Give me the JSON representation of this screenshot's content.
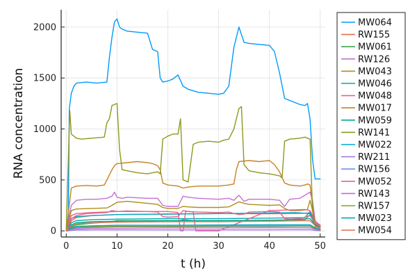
{
  "chart_data": {
    "type": "line",
    "xlabel": "t (h)",
    "ylabel": "RNA concentration",
    "xlim": [
      -1,
      51
    ],
    "ylim": [
      -60,
      2170
    ],
    "xticks": [
      0,
      10,
      20,
      30,
      40,
      50
    ],
    "yticks": [
      0,
      500,
      1000,
      1500,
      2000
    ],
    "grid": true,
    "legend_position": "top-right-outside",
    "series": [
      {
        "name": "MW064",
        "color": "#009AFA",
        "x": [
          0,
          0.4,
          0.6,
          1,
          1.5,
          2,
          4,
          6,
          8,
          8.5,
          9,
          9.5,
          10,
          10.5,
          11,
          12,
          14,
          16,
          17,
          18,
          18.5,
          19,
          20,
          21,
          22,
          23,
          24,
          26,
          28,
          30,
          31,
          32,
          33,
          34,
          35,
          36,
          38,
          40,
          41,
          42,
          43,
          44,
          46,
          47,
          47.5,
          48,
          48.5,
          49,
          50
        ],
        "y": [
          0,
          0,
          1200,
          1350,
          1420,
          1450,
          1460,
          1450,
          1460,
          1700,
          1900,
          2050,
          2080,
          2000,
          1980,
          1960,
          1950,
          1940,
          1780,
          1760,
          1500,
          1460,
          1470,
          1490,
          1530,
          1420,
          1390,
          1360,
          1350,
          1340,
          1350,
          1420,
          1800,
          2000,
          1850,
          1840,
          1830,
          1820,
          1760,
          1550,
          1300,
          1280,
          1240,
          1230,
          1250,
          1100,
          700,
          510,
          510
        ]
      },
      {
        "name": "RW155",
        "color": "#E36F47",
        "x": [
          0,
          1,
          2,
          5,
          10,
          20,
          30,
          40,
          45,
          48,
          49,
          50
        ],
        "y": [
          0,
          100,
          130,
          150,
          160,
          165,
          170,
          168,
          170,
          175,
          80,
          60
        ]
      },
      {
        "name": "MW061",
        "color": "#3EA44E",
        "x": [
          0,
          1,
          2,
          5,
          8,
          10,
          20,
          22,
          23,
          25,
          30,
          40,
          47,
          48,
          49,
          50
        ],
        "y": [
          0,
          40,
          60,
          75,
          85,
          100,
          100,
          95,
          110,
          100,
          100,
          105,
          110,
          160,
          60,
          40
        ]
      },
      {
        "name": "RW126",
        "color": "#C371D2",
        "x": [
          0,
          1,
          2,
          4,
          6,
          8,
          9,
          9.5,
          10,
          11,
          12,
          16,
          18,
          19,
          20,
          22,
          23,
          24,
          26,
          30,
          32,
          33,
          34,
          35,
          36,
          40,
          42,
          43,
          44,
          46,
          47,
          48,
          48.5,
          49,
          50
        ],
        "y": [
          0,
          250,
          300,
          310,
          310,
          320,
          340,
          380,
          330,
          320,
          330,
          320,
          320,
          250,
          240,
          240,
          340,
          330,
          320,
          310,
          320,
          300,
          350,
          290,
          310,
          310,
          300,
          240,
          310,
          320,
          350,
          380,
          300,
          100,
          50
        ]
      },
      {
        "name": "MW043",
        "color": "#AC8E18",
        "x": [
          0,
          1,
          2,
          5,
          8,
          9,
          10,
          12,
          16,
          18,
          19,
          20,
          22,
          23,
          24,
          26,
          30,
          32,
          33,
          34,
          35,
          36,
          40,
          42,
          43,
          44,
          46,
          47.5,
          48,
          48.5,
          49,
          50
        ],
        "y": [
          0,
          200,
          215,
          220,
          225,
          250,
          280,
          290,
          270,
          260,
          230,
          220,
          220,
          240,
          235,
          230,
          230,
          235,
          260,
          285,
          270,
          260,
          250,
          255,
          220,
          200,
          200,
          210,
          300,
          200,
          50,
          40
        ]
      },
      {
        "name": "MW046",
        "color": "#00A9AD",
        "x": [
          0,
          1,
          2,
          5,
          10,
          20,
          30,
          40,
          47,
          48,
          49,
          50
        ],
        "y": [
          0,
          80,
          100,
          110,
          115,
          120,
          120,
          125,
          130,
          190,
          70,
          40
        ]
      },
      {
        "name": "MW048",
        "color": "#ED5D92",
        "x": [
          0,
          1,
          2,
          5,
          10,
          15,
          20,
          22,
          22.5,
          23,
          23.5,
          24,
          25,
          25.5,
          30,
          40,
          47,
          48,
          49,
          50
        ],
        "y": [
          0,
          150,
          170,
          180,
          190,
          190,
          190,
          180,
          0,
          0,
          190,
          190,
          185,
          0,
          0,
          200,
          210,
          200,
          100,
          50
        ]
      },
      {
        "name": "MW017",
        "color": "#C68125",
        "x": [
          0,
          1,
          2,
          4,
          6,
          7.5,
          8,
          9,
          9.5,
          10,
          12,
          14,
          16,
          17,
          18,
          18.5,
          19,
          20,
          21,
          22,
          23,
          24,
          26,
          28,
          30,
          31,
          32,
          33,
          33.5,
          34,
          36,
          38,
          40,
          41,
          42,
          43,
          44,
          46,
          47,
          47.5,
          48,
          48.5,
          49,
          50
        ],
        "y": [
          0,
          420,
          440,
          445,
          440,
          450,
          500,
          600,
          640,
          660,
          670,
          680,
          670,
          660,
          640,
          600,
          470,
          450,
          445,
          440,
          420,
          430,
          440,
          440,
          440,
          445,
          450,
          460,
          600,
          680,
          690,
          680,
          690,
          650,
          580,
          470,
          450,
          440,
          450,
          460,
          450,
          250,
          60,
          40
        ]
      },
      {
        "name": "MW059",
        "color": "#00A98D",
        "x": [
          0,
          1,
          2,
          5,
          10,
          20,
          30,
          40,
          45,
          48,
          49,
          50
        ],
        "y": [
          0,
          60,
          80,
          90,
          95,
          100,
          100,
          100,
          110,
          120,
          60,
          30
        ]
      },
      {
        "name": "RW141",
        "color": "#8E971D",
        "x": [
          0,
          0.7,
          1,
          2,
          3,
          5,
          7.5,
          8,
          8.5,
          9,
          9.5,
          10,
          10.5,
          11,
          12,
          14,
          16,
          17,
          18,
          18.5,
          19,
          20,
          21,
          22,
          22.5,
          23,
          24,
          25,
          26,
          28,
          30,
          31,
          32,
          33,
          34,
          34.5,
          35,
          36,
          38,
          40,
          42,
          42.5,
          43,
          44,
          46,
          47,
          48,
          48.5,
          49,
          50
        ],
        "y": [
          0,
          1180,
          950,
          910,
          900,
          910,
          920,
          1060,
          1100,
          1230,
          1240,
          1250,
          800,
          600,
          590,
          570,
          560,
          570,
          580,
          560,
          900,
          930,
          950,
          950,
          1100,
          500,
          480,
          850,
          870,
          880,
          870,
          890,
          900,
          1000,
          1200,
          1220,
          650,
          590,
          570,
          560,
          540,
          520,
          880,
          900,
          910,
          920,
          900,
          200,
          40,
          30
        ]
      },
      {
        "name": "MW022",
        "color": "#00A8CB",
        "x": [
          0,
          1,
          2,
          5,
          10,
          20,
          30,
          40,
          45,
          48,
          49,
          50
        ],
        "y": [
          0,
          120,
          140,
          150,
          160,
          165,
          170,
          175,
          180,
          170,
          80,
          40
        ]
      },
      {
        "name": "RW211",
        "color": "#9A7FE0",
        "x": [
          0,
          1,
          2,
          5,
          10,
          20,
          30,
          40,
          48,
          49,
          50
        ],
        "y": [
          0,
          5,
          8,
          10,
          10,
          10,
          10,
          10,
          12,
          5,
          2
        ]
      },
      {
        "name": "RW156",
        "color": "#6990EF",
        "x": [
          0,
          1,
          2,
          5,
          10,
          20,
          30,
          40,
          48,
          49,
          50
        ],
        "y": [
          0,
          20,
          30,
          35,
          40,
          40,
          42,
          42,
          45,
          20,
          10
        ]
      },
      {
        "name": "MW052",
        "color": "#E26588",
        "x": [
          0,
          1,
          2,
          4,
          6,
          8,
          9,
          10,
          12,
          16,
          18,
          19,
          20,
          22,
          23,
          24,
          26,
          30,
          32,
          33,
          34,
          35,
          36,
          40,
          42,
          43,
          44,
          46,
          48,
          49,
          50
        ],
        "y": [
          0,
          120,
          150,
          170,
          175,
          180,
          200,
          190,
          195,
          190,
          185,
          140,
          135,
          140,
          200,
          190,
          185,
          180,
          185,
          170,
          160,
          165,
          185,
          190,
          185,
          120,
          115,
          120,
          150,
          80,
          40
        ]
      },
      {
        "name": "RW143",
        "color": "#C469D1",
        "x": [
          0,
          1,
          2,
          5,
          10,
          20,
          30,
          40,
          48,
          49,
          50
        ],
        "y": [
          0,
          15,
          20,
          25,
          25,
          28,
          28,
          30,
          30,
          15,
          8
        ]
      },
      {
        "name": "RW157",
        "color": "#82A01A",
        "x": [
          0,
          1,
          2,
          5,
          10,
          20,
          30,
          40,
          48,
          49,
          50
        ],
        "y": [
          0,
          25,
          35,
          40,
          45,
          45,
          48,
          50,
          50,
          25,
          10
        ]
      },
      {
        "name": "MW023",
        "color": "#00A9C0",
        "x": [
          0,
          1,
          2,
          5,
          10,
          20,
          30,
          40,
          48,
          49,
          50
        ],
        "y": [
          0,
          30,
          45,
          50,
          55,
          55,
          58,
          60,
          60,
          30,
          15
        ]
      },
      {
        "name": "MW054",
        "color": "#E17B5E",
        "x": [
          0,
          1,
          2,
          5,
          10,
          20,
          30,
          40,
          48,
          49,
          50
        ],
        "y": [
          0,
          50,
          70,
          80,
          85,
          90,
          90,
          95,
          100,
          50,
          20
        ]
      }
    ]
  }
}
